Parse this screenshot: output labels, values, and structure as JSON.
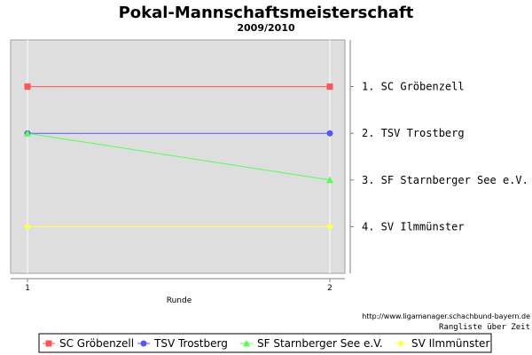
{
  "chart_data": {
    "type": "line",
    "title": "Pokal-Mannschaftsmeisterschaft",
    "subtitle": "2009/2010",
    "xlabel": "Runde",
    "ylabel": "",
    "x": [
      1,
      2
    ],
    "x_tick_labels": [
      "1",
      "2"
    ],
    "y_inverted": true,
    "ylim": [
      5,
      0
    ],
    "grid": true,
    "legend_position": "bottom",
    "rank_labels": [
      "1. SC Gröbenzell",
      "2. TSV Trostberg",
      "3. SF Starnberger See e.V.",
      "4. SV Ilmmünster"
    ],
    "series": [
      {
        "name": "SC Gröbenzell",
        "color": "#ff5555",
        "marker": "square",
        "values": [
          1,
          1
        ]
      },
      {
        "name": "TSV Trostberg",
        "color": "#5555ff",
        "marker": "circle",
        "values": [
          2,
          2
        ]
      },
      {
        "name": "SF Starnberger See e.V.",
        "color": "#55ff55",
        "marker": "triangle",
        "values": [
          2,
          3
        ]
      },
      {
        "name": "SV Ilmmünster",
        "color": "#ffff55",
        "marker": "diamond",
        "values": [
          4,
          4
        ]
      }
    ],
    "source_url": "http://www.ligamanager.schachbund-bayern.de",
    "caption": "Rangliste über Zeit"
  }
}
